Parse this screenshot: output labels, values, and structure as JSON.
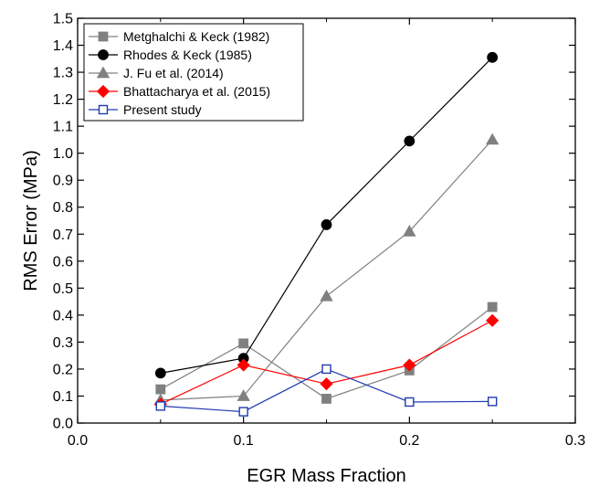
{
  "chart_data": {
    "type": "line",
    "xlabel": "EGR Mass Fraction",
    "ylabel": "RMS Error (MPa)",
    "xlim": [
      0.0,
      0.3
    ],
    "ylim": [
      0.0,
      1.5
    ],
    "xticks": [
      0.0,
      0.1,
      0.2,
      0.3
    ],
    "xtick_labels": [
      "0.0",
      "0.1",
      "0.2",
      "0.3"
    ],
    "yticks": [
      0.0,
      0.1,
      0.2,
      0.3,
      0.4,
      0.5,
      0.6,
      0.7,
      0.8,
      0.9,
      1.0,
      1.1,
      1.2,
      1.3,
      1.4,
      1.5
    ],
    "ytick_labels": [
      "0.0",
      "0.1",
      "0.2",
      "0.3",
      "0.4",
      "0.5",
      "0.6",
      "0.7",
      "0.8",
      "0.9",
      "1.0",
      "1.1",
      "1.2",
      "1.3",
      "1.4",
      "1.5"
    ],
    "grid": false,
    "legend_position": "top-left",
    "series": [
      {
        "name": "Metghalchi & Keck (1982)",
        "marker": "square",
        "color": "#808080",
        "filled": true,
        "x": [
          0.05,
          0.1,
          0.15,
          0.2,
          0.25
        ],
        "y": [
          0.125,
          0.295,
          0.09,
          0.195,
          0.43
        ]
      },
      {
        "name": "Rhodes & Keck (1985)",
        "marker": "circle",
        "color": "#000000",
        "filled": true,
        "x": [
          0.05,
          0.1,
          0.15,
          0.2,
          0.25
        ],
        "y": [
          0.185,
          0.24,
          0.735,
          1.045,
          1.355
        ]
      },
      {
        "name": "J. Fu et al. (2014)",
        "marker": "triangle",
        "color": "#808080",
        "filled": true,
        "x": [
          0.05,
          0.1,
          0.15,
          0.2,
          0.25
        ],
        "y": [
          0.085,
          0.1,
          0.47,
          0.71,
          1.05
        ]
      },
      {
        "name": "Bhattacharya et al. (2015)",
        "marker": "diamond",
        "color": "#ff0000",
        "filled": true,
        "x": [
          0.05,
          0.1,
          0.15,
          0.2,
          0.25
        ],
        "y": [
          0.07,
          0.215,
          0.145,
          0.215,
          0.38
        ]
      },
      {
        "name": "Present study",
        "marker": "square",
        "color": "#1f3bb0",
        "filled": false,
        "x": [
          0.05,
          0.1,
          0.15,
          0.2,
          0.25
        ],
        "y": [
          0.063,
          0.042,
          0.2,
          0.078,
          0.08
        ]
      }
    ]
  }
}
